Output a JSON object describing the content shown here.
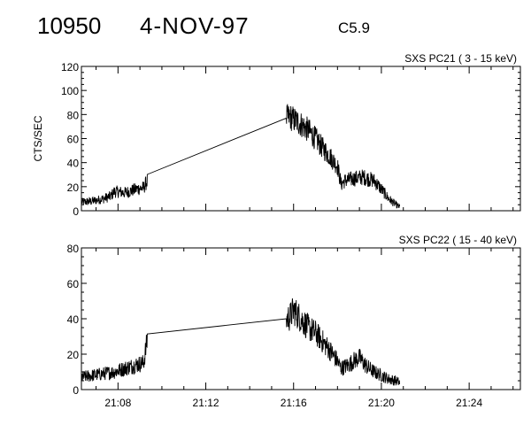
{
  "header": {
    "event_id": "10950",
    "date": "4-NOV-97",
    "flare_class": "C5.9"
  },
  "chart_data": [
    {
      "type": "line",
      "title": "SXS PC21  (  3 - 15 keV)",
      "ylabel": "CTS/SEC",
      "xlabel": "",
      "xlim": [
        "21:06:20",
        "21:26:20"
      ],
      "ylim": [
        0,
        120
      ],
      "yticks": [
        0,
        20,
        40,
        60,
        80,
        100,
        120
      ],
      "xticks": [
        "21:08",
        "21:12",
        "21:16",
        "21:20",
        "21:24"
      ],
      "x_tick_labels_shown": false,
      "noise_visible": true,
      "series": [
        {
          "x": [
            "21:06:20",
            "21:06:50",
            "21:07:20",
            "21:07:40",
            "21:07:50",
            "21:08:20",
            "21:08:50",
            "21:09:10",
            "21:09:20",
            "21:15:40",
            "21:15:50",
            "21:16:00",
            "21:16:20",
            "21:16:40",
            "21:17:00",
            "21:17:20",
            "21:17:40",
            "21:18:00",
            "21:18:10",
            "21:18:20",
            "21:18:50",
            "21:19:10",
            "21:19:40",
            "21:20:00",
            "21:20:20",
            "21:20:40",
            "21:20:50"
          ],
          "y": [
            7,
            8,
            10,
            12,
            16,
            15,
            18,
            19,
            25,
            77,
            78,
            76,
            72,
            67,
            60,
            52,
            45,
            37,
            22,
            25,
            27,
            28,
            25,
            18,
            10,
            5,
            3
          ]
        }
      ]
    },
    {
      "type": "line",
      "title": "SXS PC22  ( 15 - 40 keV)",
      "ylabel": "",
      "xlabel": "",
      "xlim": [
        "21:06:20",
        "21:26:20"
      ],
      "ylim": [
        0,
        80
      ],
      "yticks": [
        0,
        20,
        40,
        60,
        80
      ],
      "xticks": [
        "21:08",
        "21:12",
        "21:16",
        "21:20",
        "21:24"
      ],
      "x_tick_labels_shown": true,
      "noise_visible": true,
      "series": [
        {
          "x": [
            "21:06:20",
            "21:06:50",
            "21:07:20",
            "21:07:50",
            "21:08:20",
            "21:08:50",
            "21:09:10",
            "21:09:20",
            "21:15:40",
            "21:15:50",
            "21:16:00",
            "21:16:20",
            "21:16:40",
            "21:17:00",
            "21:17:20",
            "21:17:40",
            "21:18:00",
            "21:18:10",
            "21:18:30",
            "21:18:50",
            "21:19:00",
            "21:19:20",
            "21:19:40",
            "21:20:00",
            "21:20:20",
            "21:20:40",
            "21:20:50"
          ],
          "y": [
            7,
            8,
            9,
            10,
            12,
            14,
            15,
            28,
            40,
            41,
            45,
            40,
            35,
            32,
            27,
            22,
            16,
            12,
            14,
            17,
            18,
            13,
            10,
            8,
            6,
            5,
            4
          ]
        }
      ]
    }
  ]
}
